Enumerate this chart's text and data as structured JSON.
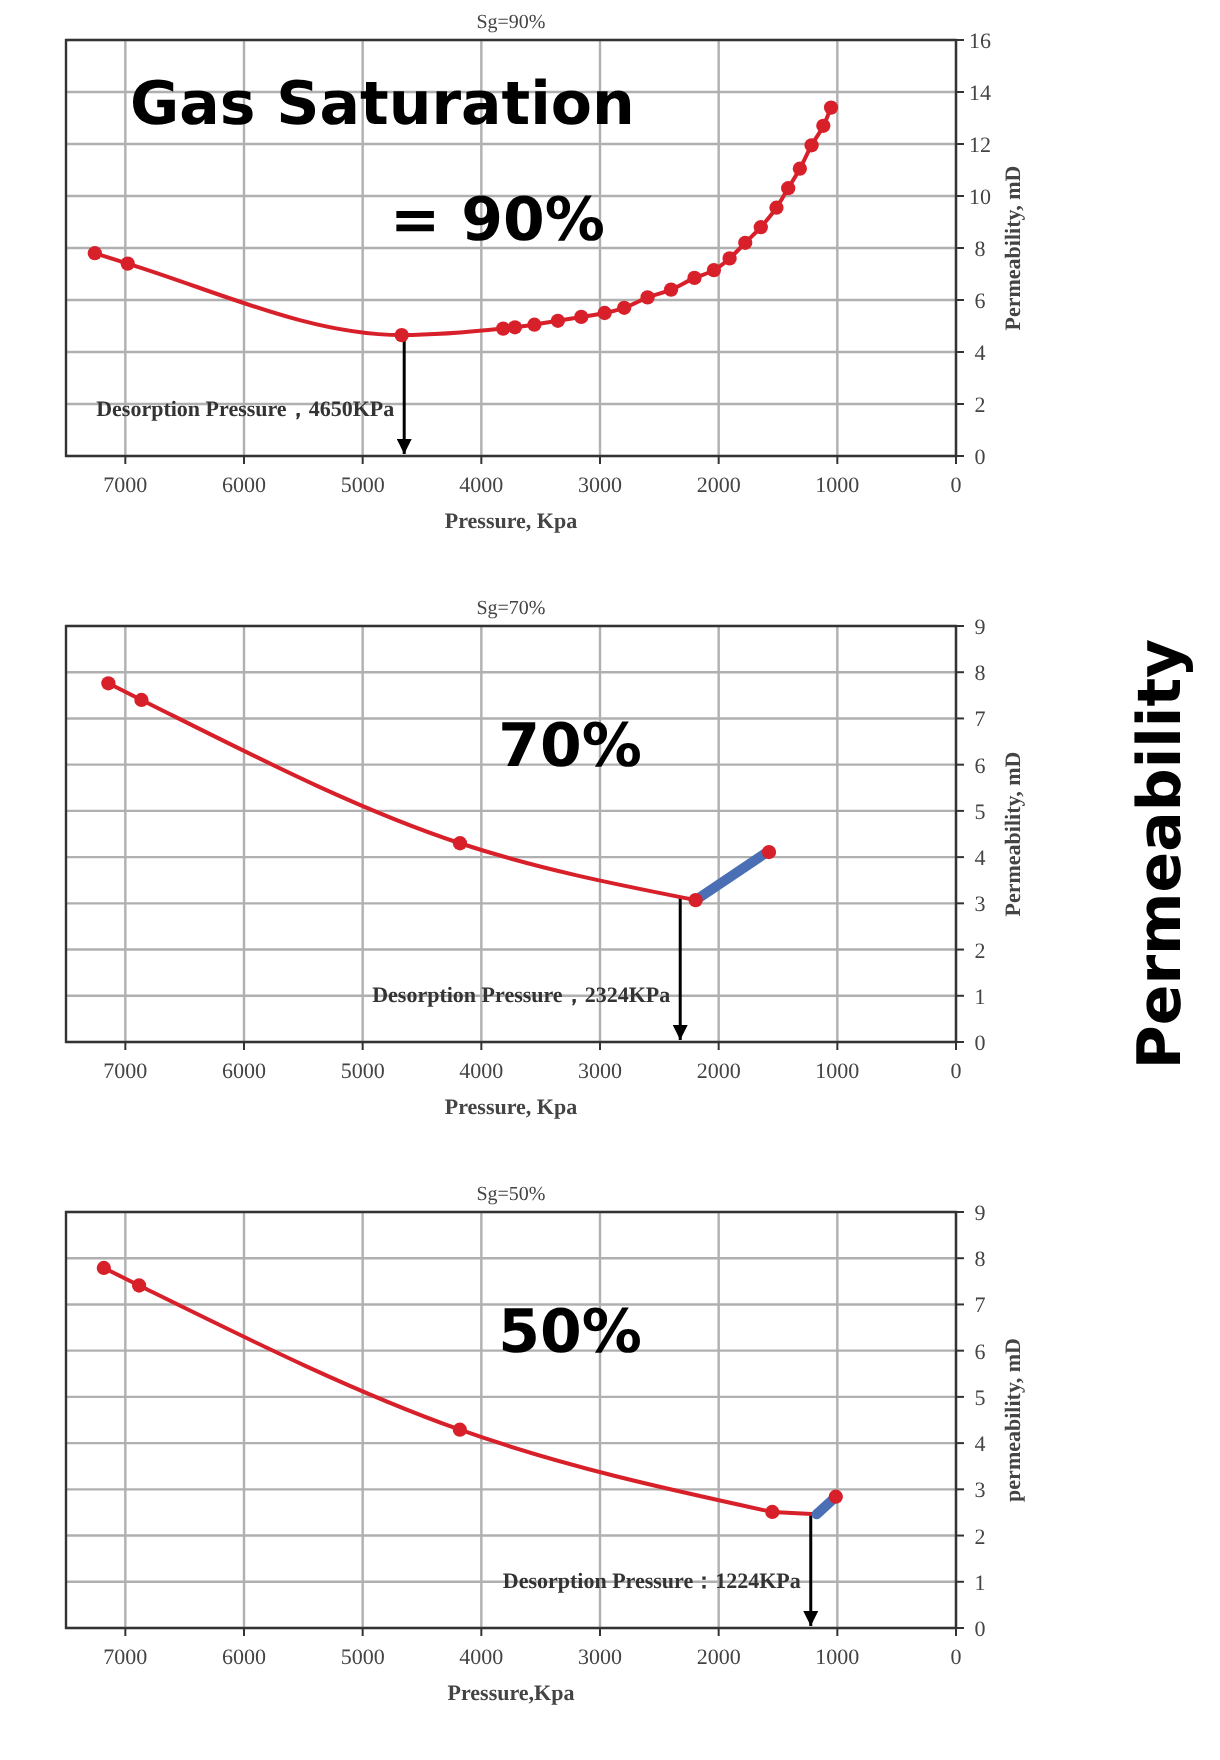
{
  "chart_data": [
    {
      "type": "line",
      "title": "Sg=90%",
      "xlabel": "Pressure, Kpa",
      "ylabel": "Permeability, mD",
      "xlim": [
        7500,
        0
      ],
      "xticks": [
        7000,
        6000,
        5000,
        4000,
        3000,
        2000,
        1000,
        0
      ],
      "ylim": [
        0,
        16
      ],
      "yticks": [
        0,
        2,
        4,
        6,
        8,
        10,
        12,
        14,
        16
      ],
      "grid": true,
      "marker": "circle",
      "line_style": "solid",
      "series": [
        {
          "color": "#d8202a",
          "x": [
            7257,
            6980,
            4671,
            3816,
            3717,
            3553,
            3355,
            3158,
            2961,
            2796,
            2599,
            2401,
            2204,
            2040,
            1908,
            1776,
            1645,
            1513,
            1414,
            1316,
            1217,
            1118,
            1053
          ],
          "values": [
            7.8,
            7.4,
            4.65,
            4.9,
            4.95,
            5.05,
            5.2,
            5.35,
            5.5,
            5.7,
            6.1,
            6.4,
            6.85,
            7.15,
            7.6,
            8.2,
            8.8,
            9.55,
            10.3,
            11.05,
            11.95,
            12.7,
            13.4
          ]
        }
      ],
      "ref_lines": [
        {
          "axis": "x",
          "value": 4650,
          "label": "Desorption Pressure，4650KPa",
          "color": "#000000"
        }
      ],
      "annotations": [
        "Gas Saturation\n= 90%"
      ]
    },
    {
      "type": "line",
      "title": "Sg=70%",
      "xlabel": "Pressure, Kpa",
      "ylabel": "Permeability, mD",
      "xlim": [
        7500,
        0
      ],
      "xticks": [
        7000,
        6000,
        5000,
        4000,
        3000,
        2000,
        1000,
        0
      ],
      "ylim": [
        0,
        9
      ],
      "yticks": [
        0,
        1,
        2,
        3,
        4,
        5,
        6,
        7,
        8,
        9
      ],
      "grid": true,
      "marker": "circle",
      "line_style": "solid",
      "series": [
        {
          "color": "#d8202a",
          "x": [
            7143,
            6864,
            4180,
            2194
          ],
          "values": [
            7.76,
            7.4,
            4.3,
            3.07
          ]
        },
        {
          "color": "#4a6fb5",
          "x": [
            2194,
            1608
          ],
          "values": [
            3.07,
            4.08
          ],
          "marker": "none"
        },
        {
          "type": "scatter",
          "color": "#d8202a",
          "x": [
            1576
          ],
          "values": [
            4.11
          ]
        }
      ],
      "ref_lines": [
        {
          "axis": "x",
          "value": 2324,
          "label": "Desorption Pressure，2324KPa",
          "color": "#000000"
        }
      ],
      "annotations": [
        "70%",
        "Permeability"
      ]
    },
    {
      "type": "line",
      "title": "Sg=50%",
      "xlabel": "Pressure,Kpa",
      "ylabel": "permeability, mD",
      "xlim": [
        7500,
        0
      ],
      "xticks": [
        7000,
        6000,
        5000,
        4000,
        3000,
        2000,
        1000,
        0
      ],
      "ylim": [
        0,
        9
      ],
      "yticks": [
        0,
        1,
        2,
        3,
        4,
        5,
        6,
        7,
        8,
        9
      ],
      "grid": true,
      "marker": "circle",
      "line_style": "solid",
      "series": [
        {
          "color": "#d8202a",
          "x": [
            7181,
            6884,
            4181,
            1548
          ],
          "values": [
            7.79,
            7.41,
            4.29,
            2.51
          ]
        },
        {
          "color": "#d8202a",
          "x": [
            1548,
            1174
          ],
          "values": [
            2.51,
            2.46
          ],
          "marker": "none"
        },
        {
          "color": "#4a6fb5",
          "x": [
            1174,
            1030
          ],
          "values": [
            2.46,
            2.8
          ],
          "marker": "none"
        },
        {
          "type": "scatter",
          "color": "#d8202a",
          "x": [
            1013
          ],
          "values": [
            2.84
          ]
        }
      ],
      "ref_lines": [
        {
          "axis": "x",
          "value": 1224,
          "label": "Desorption Pressure：1224KPa",
          "color": "#000000"
        }
      ],
      "annotations": [
        "50%"
      ]
    }
  ]
}
